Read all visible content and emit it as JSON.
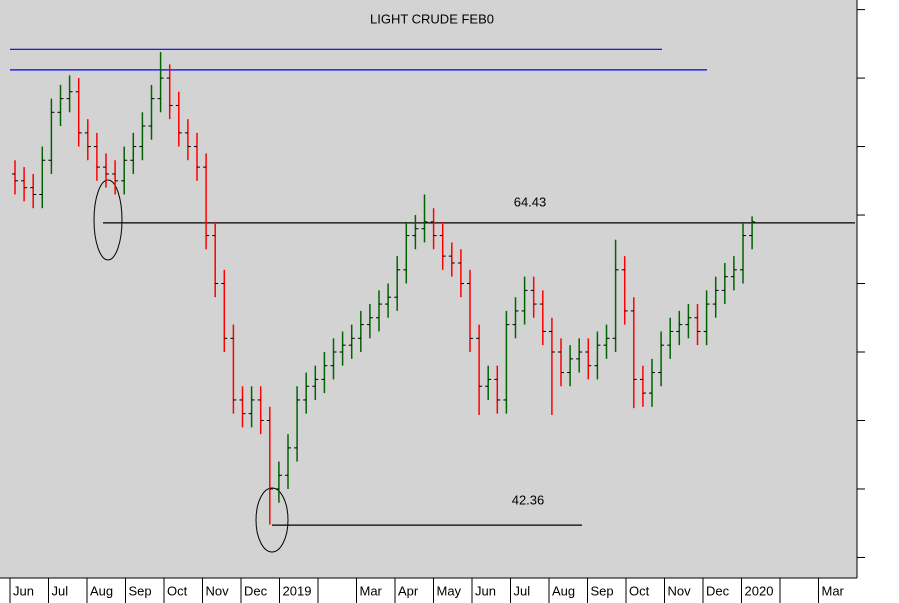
{
  "chart_data": {
    "type": "ohlc",
    "title": "LIGHT CRUDE FEB0",
    "categories": [
      "Jun",
      "Jul",
      "Aug",
      "Sep",
      "Oct",
      "Nov",
      "Dec",
      "2019",
      null,
      "Mar",
      "Apr",
      "May",
      "Jun",
      "Jul",
      "Aug",
      "Sep",
      "Oct",
      "Nov",
      "Dec",
      "2020",
      null,
      "Mar"
    ],
    "open": [
      68.0,
      67.5,
      67.0,
      66.5,
      69.0,
      72.5,
      73.5,
      74.0,
      71.0,
      70.0,
      68.5,
      68.0,
      67.5,
      69.0,
      70.0,
      71.5,
      73.5,
      75.0,
      73.0,
      71.0,
      70.0,
      68.5,
      63.5,
      60.0,
      56.0,
      51.5,
      50.5,
      51.5,
      50.0,
      45.0,
      46.0,
      48.0,
      51.5,
      52.5,
      53.0,
      54.0,
      55.0,
      55.5,
      56.0,
      57.0,
      57.5,
      58.5,
      59.0,
      61.0,
      63.5,
      64.0,
      64.5,
      63.5,
      62.0,
      61.5,
      60.0,
      56.0,
      52.5,
      53.0,
      51.5,
      57.0,
      58.0,
      59.5,
      58.5,
      56.5,
      55.0,
      53.5,
      54.5,
      55.0,
      54.0,
      55.5,
      56.0,
      61.0,
      58.0,
      53.0,
      52.0,
      53.5,
      55.5,
      56.5,
      57.0,
      57.5,
      56.5,
      58.5,
      59.5,
      60.5,
      61.0,
      63.5
    ],
    "high": [
      69,
      68.5,
      68,
      70,
      73.5,
      74.5,
      75.2,
      75,
      72,
      71,
      69.5,
      69,
      70,
      71,
      72.5,
      74.5,
      76.9,
      76,
      74,
      72,
      71,
      69.5,
      64.5,
      61,
      57,
      52.5,
      52.5,
      52.5,
      51,
      47,
      49,
      52.5,
      53.5,
      54,
      55,
      56,
      56.5,
      57,
      58,
      58.5,
      59.5,
      60,
      62,
      64.5,
      65,
      66.5,
      65.5,
      64.5,
      63,
      62.5,
      61,
      57,
      54,
      54,
      58,
      59,
      60.5,
      60.5,
      59.5,
      57.5,
      56,
      55.5,
      56,
      56,
      56.5,
      57,
      63.2,
      62,
      59,
      54,
      54.5,
      56.5,
      57.5,
      58,
      58.5,
      58.5,
      59.5,
      60.5,
      61.5,
      62,
      64.5,
      64.9
    ],
    "low": [
      66.5,
      66,
      65.5,
      65.5,
      68,
      71.5,
      72.5,
      70,
      69,
      67.5,
      67,
      66.5,
      66.5,
      68,
      69,
      70.5,
      72.5,
      72,
      70,
      69,
      67.5,
      62.5,
      59,
      55,
      50.5,
      49.5,
      49.5,
      49,
      42.4,
      44,
      45,
      47,
      50.5,
      51.5,
      52,
      53,
      54,
      54.5,
      55,
      56,
      56.5,
      57.5,
      58,
      60,
      62.5,
      63,
      62.5,
      61,
      60.5,
      59,
      55,
      50.4,
      51.5,
      50.5,
      50.5,
      56,
      57,
      57.5,
      55.5,
      50.4,
      52.5,
      52.5,
      53.5,
      53,
      53,
      54.5,
      55,
      57,
      50.9,
      51,
      51,
      52.5,
      54.5,
      55.5,
      56,
      55.5,
      55.5,
      57.5,
      58.5,
      59.5,
      60,
      62.5
    ],
    "close": [
      67.5,
      67.0,
      66.5,
      69.0,
      72.5,
      73.5,
      74.0,
      71.0,
      70.0,
      68.5,
      68.0,
      67.5,
      69.0,
      70.0,
      71.5,
      73.5,
      75.0,
      73.0,
      71.0,
      70.0,
      68.5,
      63.5,
      60.0,
      56.0,
      51.5,
      50.5,
      51.5,
      50.0,
      45.0,
      46.0,
      48.0,
      51.5,
      52.5,
      53.0,
      54.0,
      55.0,
      55.5,
      56.0,
      57.0,
      57.5,
      58.5,
      59.0,
      61.0,
      63.5,
      64.0,
      64.5,
      63.5,
      62.0,
      61.5,
      60.0,
      56.0,
      52.5,
      53.0,
      51.5,
      57.0,
      58.0,
      59.5,
      58.5,
      56.5,
      55.0,
      53.5,
      54.5,
      55.0,
      54.0,
      55.5,
      56.0,
      61.0,
      58.0,
      53.0,
      52.0,
      53.5,
      55.5,
      56.5,
      57.0,
      57.5,
      56.5,
      58.5,
      59.5,
      60.5,
      61.0,
      63.5,
      64.5
    ],
    "up_color": "#006400",
    "down_color": "#ff0000",
    "ylim": [
      38.5,
      80.7
    ],
    "yticks": [
      40,
      45,
      50,
      55,
      60,
      65,
      70,
      75,
      80
    ],
    "lines": [
      {
        "value": 77.1,
        "color": "#0000ff"
      },
      {
        "value": 75.6,
        "color": "#0000ff"
      },
      {
        "value": 64.43,
        "color": "#000000"
      },
      {
        "value": 42.36,
        "color": "#000000"
      }
    ],
    "background": "#d3d3d3"
  }
}
